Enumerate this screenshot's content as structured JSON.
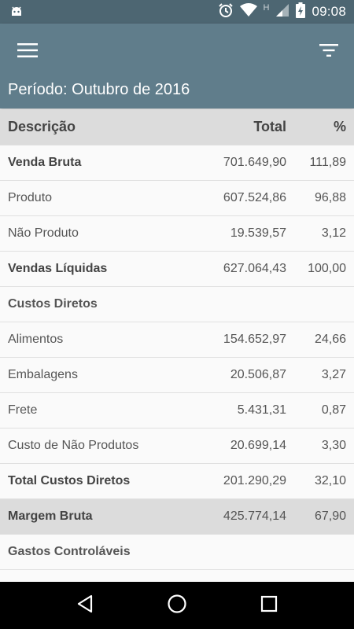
{
  "status_bar": {
    "time": "09:08",
    "network_label": "H",
    "icons": [
      "android-icon",
      "alarm-icon",
      "wifi-icon",
      "signal-icon",
      "battery-charging-icon"
    ]
  },
  "toolbar": {
    "menu_icon": "hamburger-menu-icon",
    "filter_icon": "filter-icon",
    "period": "Período: Outubro de 2016"
  },
  "table": {
    "headers": {
      "description": "Descrição",
      "total": "Total",
      "percent": "%"
    },
    "rows": [
      {
        "description": "Venda Bruta",
        "total": "701.649,90",
        "percent": "111,89",
        "style": "bold"
      },
      {
        "description": "Produto",
        "total": "607.524,86",
        "percent": "96,88",
        "style": "normal"
      },
      {
        "description": "Não Produto",
        "total": "19.539,57",
        "percent": "3,12",
        "style": "normal"
      },
      {
        "description": "Vendas Líquidas",
        "total": "627.064,43",
        "percent": "100,00",
        "style": "bold"
      },
      {
        "description": "Custos Diretos",
        "total": "",
        "percent": "",
        "style": "section"
      },
      {
        "description": "Alimentos",
        "total": "154.652,97",
        "percent": "24,66",
        "style": "normal"
      },
      {
        "description": "Embalagens",
        "total": "20.506,87",
        "percent": "3,27",
        "style": "normal"
      },
      {
        "description": "Frete",
        "total": "5.431,31",
        "percent": "0,87",
        "style": "normal"
      },
      {
        "description": "Custo de Não Produtos",
        "total": "20.699,14",
        "percent": "3,30",
        "style": "normal"
      },
      {
        "description": "Total Custos Diretos",
        "total": "201.290,29",
        "percent": "32,10",
        "style": "bold"
      },
      {
        "description": "Margem Bruta",
        "total": "425.774,14",
        "percent": "67,90",
        "style": "grey"
      },
      {
        "description": "Gastos Controláveis",
        "total": "",
        "percent": "",
        "style": "section"
      }
    ]
  },
  "nav_bar": {
    "icons": [
      "back-icon",
      "home-icon",
      "recents-icon"
    ]
  },
  "colors": {
    "status_bar": "#4d6672",
    "toolbar": "#607d8b",
    "header_row": "#dcdcdc"
  }
}
